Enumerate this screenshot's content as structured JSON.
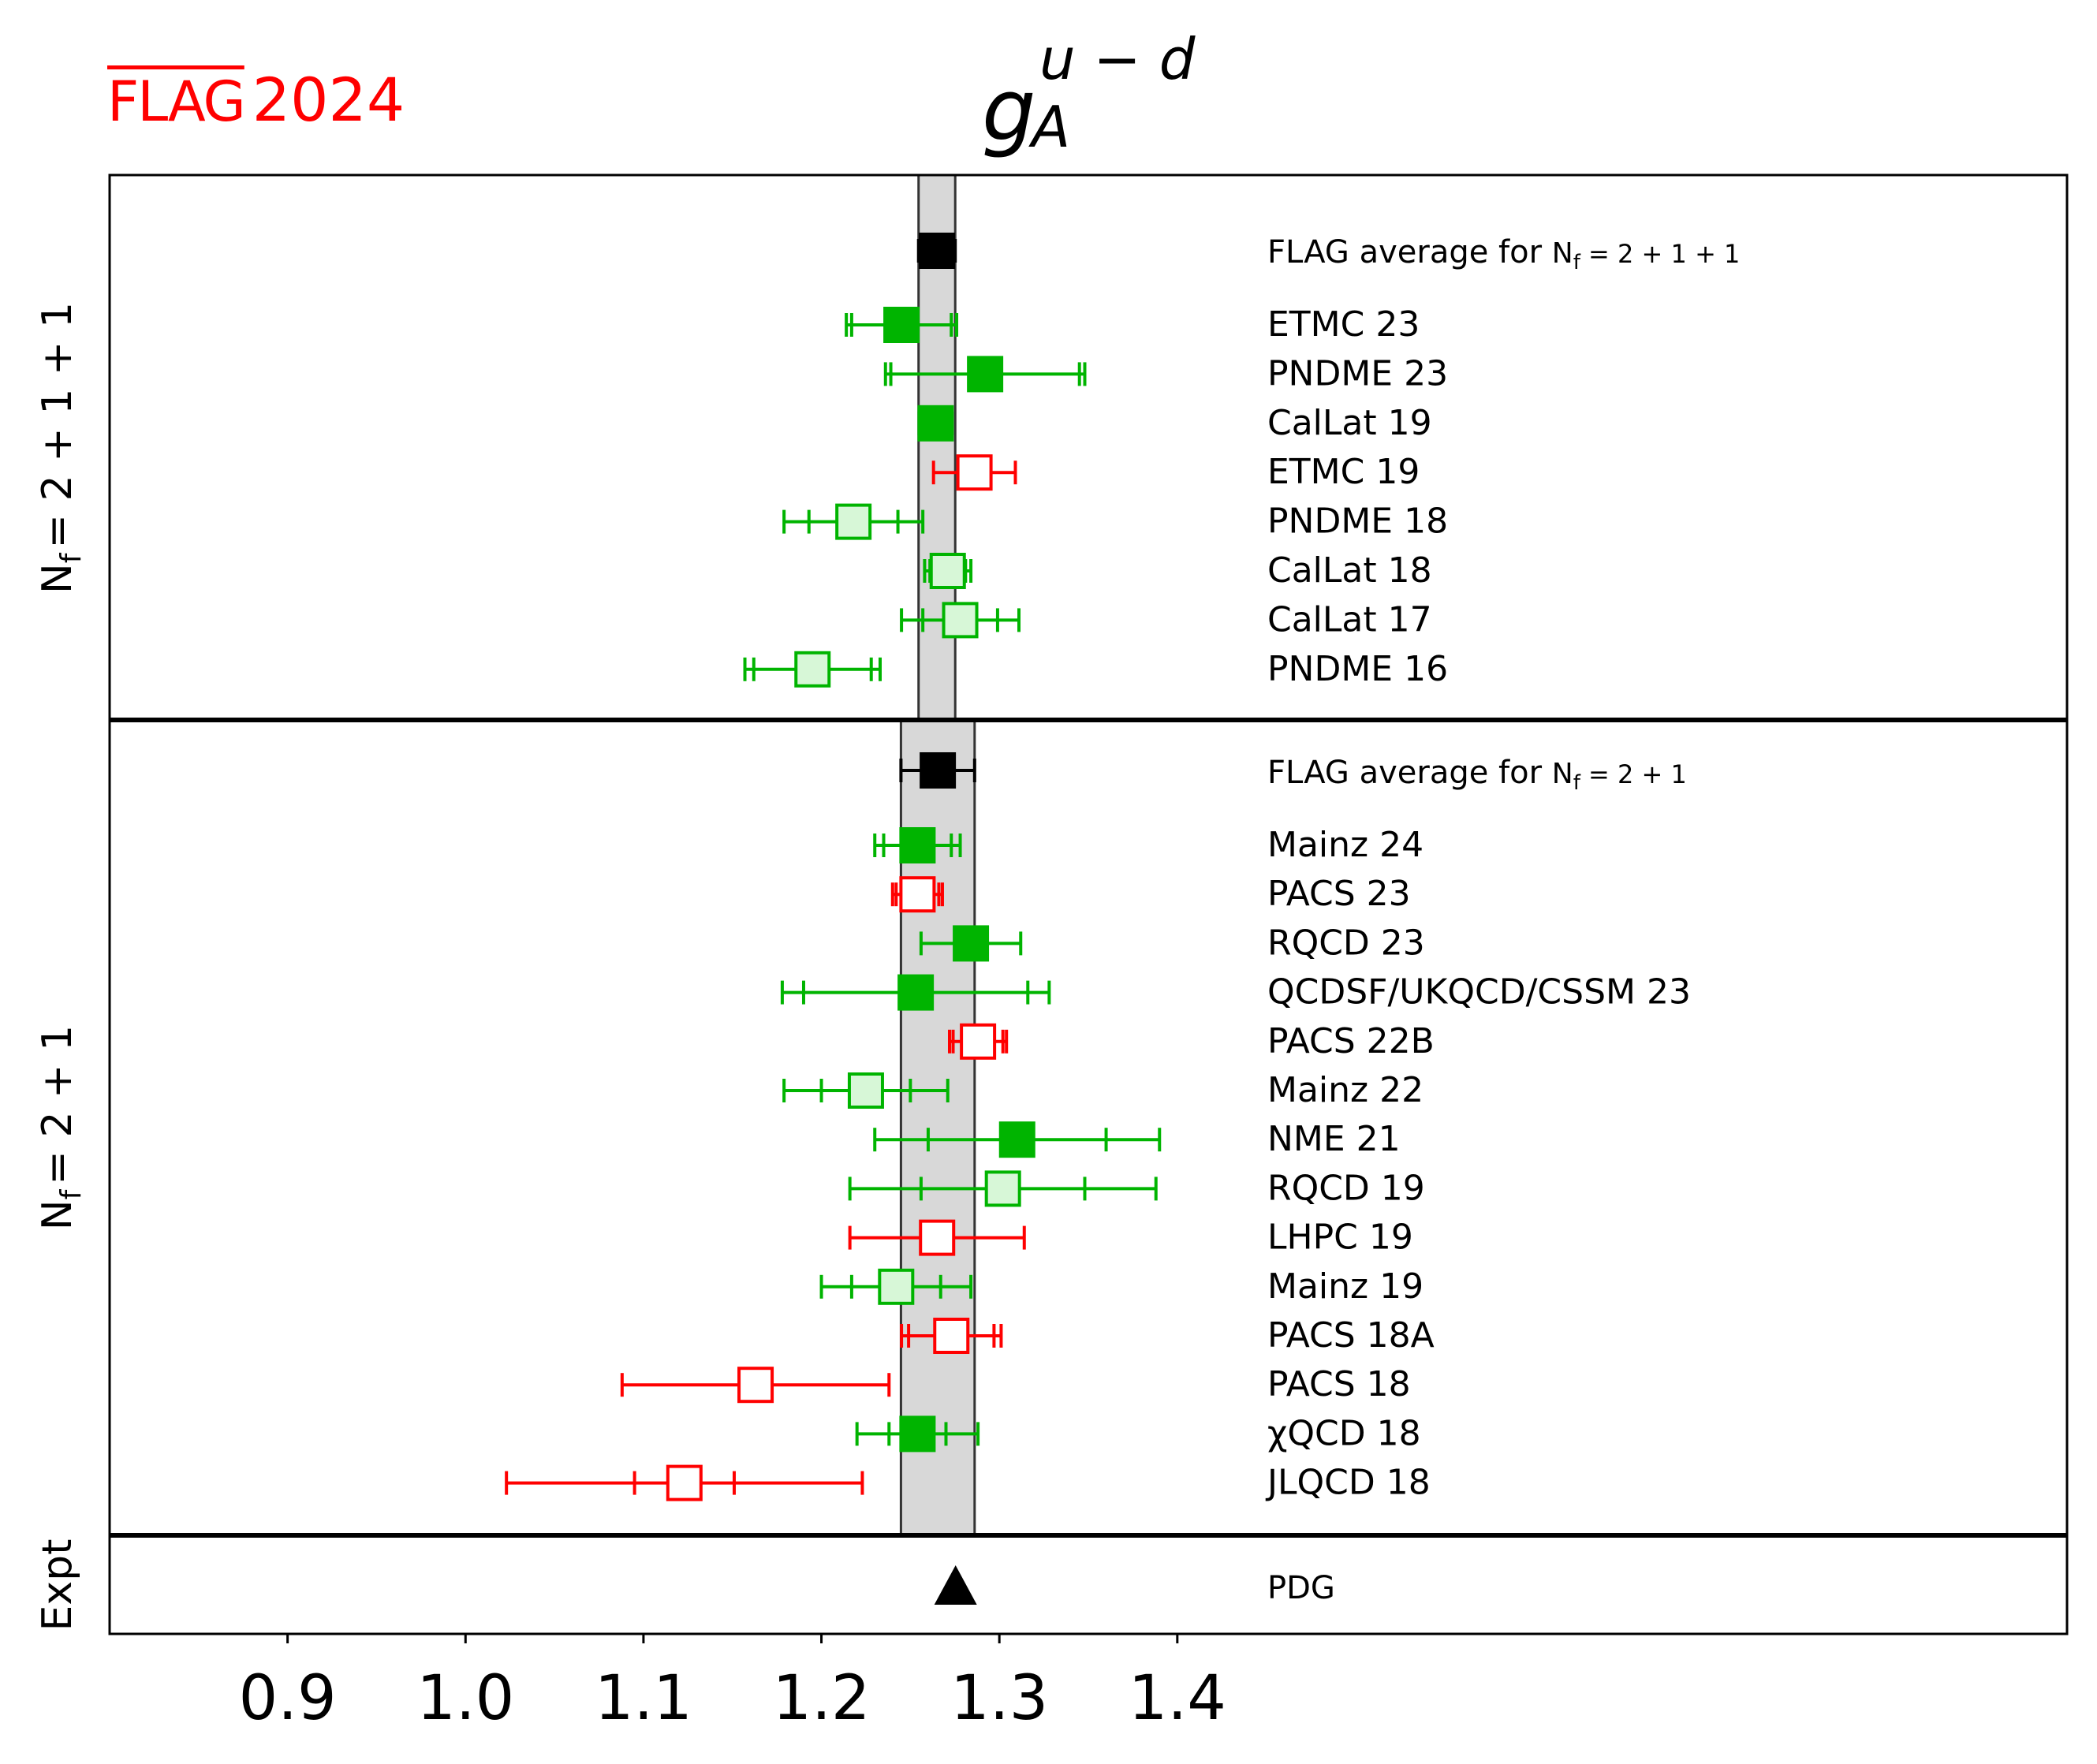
{
  "logo": {
    "flag": "FLAG",
    "year": "2024"
  },
  "chart_data": {
    "type": "scatter",
    "title_main": "g",
    "title_sup": "u − d",
    "title_sub": "A",
    "xlim": [
      0.8,
      1.9
    ],
    "xticks": [
      0.9,
      1.0,
      1.1,
      1.2,
      1.3,
      1.4
    ],
    "xtick_labels": [
      "0.9",
      "1.0",
      "1.1",
      "1.2",
      "1.3",
      "1.4"
    ],
    "colors": {
      "green": "#00b400",
      "light_green": "#d7f7d7",
      "red": "#ff0000",
      "black": "#000000",
      "band": "#d8d8d8"
    },
    "panels": [
      {
        "id": "nf2111",
        "label": "N_f = 2+1+1",
        "ylabel_main": "N",
        "ylabel_sub": "f",
        "ylabel_rest": "= 2 + 1 + 1",
        "band": [
          1.2546,
          1.2752
        ],
        "average": {
          "label_main": "FLAG average for ",
          "label_nf": "N",
          "label_sub": "f",
          "label_rest": " = 2 + 1 + 1",
          "value": 1.2649,
          "err_lo": 0.0103,
          "err_hi": 0.0103
        },
        "points": [
          {
            "label": "ETMC 23",
            "value": 1.245,
            "stat": 0.028,
            "total": 0.031,
            "style": "filled",
            "color": "green"
          },
          {
            "label": "PNDME 23",
            "value": 1.292,
            "stat": 0.053,
            "total": 0.056,
            "style": "filled",
            "color": "green"
          },
          {
            "label": "CalLat 19",
            "value": 1.2642,
            "stat": 0.0093,
            "total": 0.0093,
            "style": "filled",
            "color": "green"
          },
          {
            "label": "ETMC 19",
            "value": 1.286,
            "stat": 0.023,
            "total": 0.023,
            "style": "open",
            "color": "red"
          },
          {
            "label": "PNDME 18",
            "value": 1.218,
            "stat": 0.025,
            "total": 0.039,
            "style": "light",
            "color": "green"
          },
          {
            "label": "CalLat 18",
            "value": 1.271,
            "stat": 0.01,
            "total": 0.013,
            "style": "light",
            "color": "green"
          },
          {
            "label": "CalLat 17",
            "value": 1.278,
            "stat": 0.021,
            "total": 0.033,
            "style": "light",
            "color": "green"
          },
          {
            "label": "PNDME 16",
            "value": 1.195,
            "stat": 0.033,
            "total": 0.038,
            "style": "light",
            "color": "green"
          }
        ]
      },
      {
        "id": "nf21",
        "label": "N_f = 2+1",
        "ylabel_main": "N",
        "ylabel_sub": "f",
        "ylabel_rest": "= 2 + 1",
        "band": [
          1.2447,
          1.2861
        ],
        "average": {
          "label_main": "FLAG average for ",
          "label_nf": "N",
          "label_sub": "f",
          "label_rest": " = 2 + 1",
          "value": 1.2654,
          "err_lo": 0.0207,
          "err_hi": 0.0207
        },
        "points": [
          {
            "label": "Mainz 24",
            "value": 1.254,
            "stat": 0.019,
            "total": 0.024,
            "style": "filled",
            "color": "green"
          },
          {
            "label": "PACS 23",
            "value": 1.254,
            "stat": 0.012,
            "total": 0.014,
            "style": "open",
            "color": "red"
          },
          {
            "label": "RQCD 23",
            "value": 1.284,
            "stat": 0.028,
            "total": 0.028,
            "style": "filled",
            "color": "green"
          },
          {
            "label": "QCDSF/UKQCD/CSSM 23",
            "value": 1.253,
            "stat": 0.063,
            "total": 0.075,
            "style": "filled",
            "color": "green"
          },
          {
            "label": "PACS 22B",
            "value": 1.288,
            "stat": 0.014,
            "total": 0.016,
            "style": "open",
            "color": "red"
          },
          {
            "label": "Mainz 22",
            "value": 1.225,
            "stat": 0.025,
            "total": 0.046,
            "style": "light",
            "color": "green"
          },
          {
            "label": "NME 21",
            "value": 1.31,
            "stat": 0.05,
            "total": 0.08,
            "style": "filled",
            "color": "green"
          },
          {
            "label": "RQCD 19",
            "value": 1.302,
            "stat": 0.046,
            "total": 0.086,
            "style": "light",
            "color": "green"
          },
          {
            "label": "LHPC 19",
            "value": 1.265,
            "stat": 0.049,
            "total": 0.049,
            "style": "open",
            "color": "red"
          },
          {
            "label": "Mainz 19",
            "value": 1.242,
            "stat": 0.025,
            "total": 0.042,
            "style": "light",
            "color": "green"
          },
          {
            "label": "PACS 18A",
            "value": 1.273,
            "stat": 0.024,
            "total": 0.028,
            "style": "open",
            "color": "red"
          },
          {
            "label": "PACS 18",
            "value": 1.163,
            "stat": 0.075,
            "total": 0.075,
            "style": "open",
            "color": "red"
          },
          {
            "label": "χQCD 18",
            "value": 1.254,
            "stat": 0.016,
            "total": 0.034,
            "style": "filled",
            "color": "green"
          },
          {
            "label": "JLQCD 18",
            "value": 1.123,
            "stat": 0.028,
            "total": 0.1,
            "style": "open",
            "color": "red"
          }
        ]
      },
      {
        "id": "expt",
        "label": "Expt",
        "points": [
          {
            "label": "PDG",
            "value": 1.2754,
            "style": "triangle",
            "color": "black"
          }
        ]
      }
    ]
  }
}
